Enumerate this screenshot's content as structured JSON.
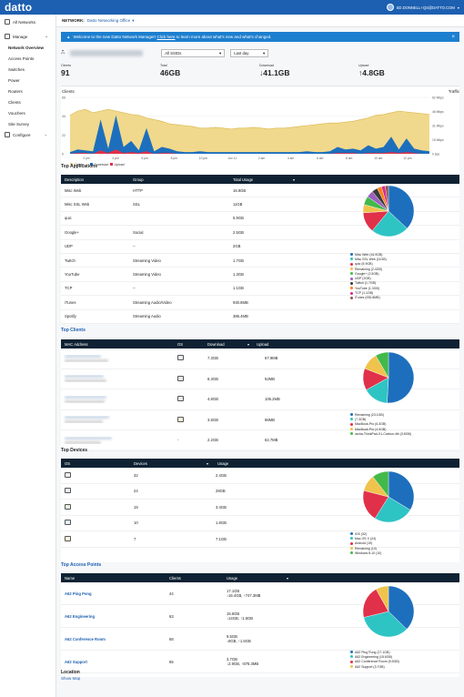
{
  "header": {
    "logo": "datto",
    "user": "SD.DONNELL+QS@DATTO.COM"
  },
  "sidebar": {
    "all_networks": "All Networks",
    "manage": "Manage",
    "items": [
      "Network Overview",
      "Access Points",
      "Switches",
      "Power",
      "Routers",
      "Clients",
      "Vouchers",
      "Site Survey"
    ],
    "configure": "Configure"
  },
  "netbar": {
    "label": "NETWORK:",
    "name": "Datto Networking Office"
  },
  "banner": {
    "pre": "Welcome to the new Datto Network Manager!",
    "link": "Click here",
    "post": "to learn more about what's new and what's changed."
  },
  "filters": {
    "ssid": "All SSIDs",
    "range": "Last day"
  },
  "stats": {
    "clients_label": "Clients",
    "clients": "91",
    "total_label": "Total",
    "total": "46GB",
    "download_label": "Download",
    "download": "↓41.1GB",
    "upload_label": "Upload",
    "upload": "↑4.8GB"
  },
  "chart_data": {
    "type": "area",
    "title": "Clients",
    "right_title": "Traffic",
    "x_ticks": [
      "2 pm",
      "4 pm",
      "6 pm",
      "8 pm",
      "10 pm",
      "Jun 11",
      "2 am",
      "4 am",
      "6 am",
      "8 am",
      "10 am",
      "12 pm"
    ],
    "y_left_ticks": [
      "66",
      "44",
      "22",
      "0"
    ],
    "y_right_ticks": [
      "62 Mbps",
      "46 Mbps",
      "31 Mbps",
      "15 Mbps",
      "0 bps"
    ],
    "legend": [
      "Clients",
      "Download",
      "Upload"
    ],
    "clients": [
      45,
      50,
      52,
      48,
      50,
      52,
      50,
      48,
      46,
      45,
      42,
      40,
      38,
      35,
      34,
      33,
      32,
      30,
      30,
      31,
      30,
      29,
      30,
      30,
      31,
      30,
      29,
      30,
      30,
      31,
      32,
      33,
      34,
      35,
      36,
      36,
      37,
      38,
      40,
      42,
      45,
      46,
      48,
      50,
      49,
      48,
      47,
      46
    ],
    "download": [
      2,
      5,
      4,
      3,
      40,
      6,
      45,
      8,
      15,
      4,
      30,
      3,
      8,
      6,
      3,
      2,
      2,
      3,
      2,
      2,
      2,
      2,
      2,
      2,
      2,
      2,
      2,
      2,
      2,
      2,
      2,
      3,
      2,
      2,
      3,
      8,
      5,
      6,
      4,
      10,
      6,
      8,
      20,
      5,
      18,
      6,
      4,
      3
    ],
    "upload": [
      0,
      1,
      1,
      0,
      4,
      1,
      5,
      1,
      2,
      1,
      3,
      0,
      1,
      1,
      0,
      0,
      0,
      0,
      0,
      0,
      0,
      0,
      0,
      0,
      0,
      0,
      0,
      0,
      0,
      0,
      0,
      0,
      0,
      0,
      0,
      1,
      1,
      1,
      0,
      1,
      1,
      1,
      2,
      1,
      2,
      1,
      0,
      0
    ],
    "colors": {
      "clients": "#f0d98c",
      "download": "#1d6fbd",
      "upload": "#e0304a"
    }
  },
  "top_apps": {
    "title": "Top Applications",
    "headers": [
      "Description",
      "Group",
      "Total Usage"
    ],
    "rows": [
      [
        "Misc Web",
        "HTTP",
        "16.9GB"
      ],
      [
        "Misc SSL Web",
        "SSL",
        "11GB"
      ],
      [
        "quic",
        "",
        "5.9GB"
      ],
      [
        "Google+",
        "Social",
        "2.5GB"
      ],
      [
        "UDP",
        "--",
        "2GB"
      ],
      [
        "Twitch",
        "Streaming Video",
        "1.7GB"
      ],
      [
        "YouTube",
        "Streaming Video",
        "1.3GB"
      ],
      [
        "TCP",
        "--",
        "1.1GB"
      ],
      [
        "iTunes",
        "Streaming Audio/Video",
        "930.8MB"
      ],
      [
        "Spotify",
        "Streaming Audio",
        "386.4MB"
      ]
    ],
    "legend": [
      "Misc Web (16.9GB)",
      "Misc SSL Web (11GB)",
      "quic (5.9GB)",
      "Remaining (2.4GB)",
      "Google+ (2.5GB)",
      "UDP (2GB)",
      "Twitch (1.7GB)",
      "YouTube (1.3GB)",
      "TCP (1.1GB)",
      "iTunes (930.8MB)"
    ],
    "values": [
      16.9,
      11,
      5.9,
      2.4,
      2.5,
      2,
      1.7,
      1.3,
      1.1,
      0.93
    ],
    "colors": [
      "#1d6fbd",
      "#2ec4c4",
      "#e0304a",
      "#f0c34c",
      "#42b94a",
      "#9b5fc0",
      "#3a3a3a",
      "#ff7f0e",
      "#d62790",
      "#8c564b"
    ]
  },
  "top_clients": {
    "title": "Top Clients",
    "headers": [
      "MAC Address",
      "OS",
      "Download",
      "Upload"
    ],
    "rows": [
      [
        "7.3GB",
        "67.9MB"
      ],
      [
        "6.3GB",
        "52MB"
      ],
      [
        "4.8GB",
        "106.2MB"
      ],
      [
        "3.8GB",
        "86MB"
      ],
      [
        "2.2GB",
        "62.7MB"
      ]
    ],
    "os_last": "-",
    "legend": [
      "Remaining (23.1GB)",
      "(7.3GB)",
      "MacBook-Pro (6.3GB)",
      "MacBook-Pro (4.9GB)",
      "racha-ThinkPad-X1-Carbon-4th (3.8GB)"
    ],
    "values": [
      23.1,
      7.3,
      6.3,
      4.9,
      3.8
    ],
    "colors": [
      "#1d6fbd",
      "#2ec4c4",
      "#e0304a",
      "#f0c34c",
      "#42b94a"
    ]
  },
  "top_devices": {
    "title": "Top Devices",
    "headers": [
      "OS",
      "Devices",
      "Usage"
    ],
    "rows": [
      [
        "32",
        "2.4GB"
      ],
      [
        "24",
        "28GB"
      ],
      [
        "19",
        "3.4GB"
      ],
      [
        "10",
        "1.8GB"
      ],
      [
        "7",
        "7.1GB"
      ]
    ],
    "legend": [
      "iOS (32)",
      "Mac OS X (24)",
      "Android (19)",
      "Remaining (10)",
      "Windows 8-10 (10)"
    ],
    "values": [
      32,
      24,
      19,
      10,
      10
    ],
    "colors": [
      "#1d6fbd",
      "#2ec4c4",
      "#e0304a",
      "#f0c34c",
      "#42b94a"
    ]
  },
  "top_aps": {
    "title": "Top Access Points",
    "headers": [
      "Name",
      "Clients",
      "Usage"
    ],
    "rows": [
      [
        "A62 Ping Pong",
        "44",
        "17.1GB",
        "↓16.4GB, ↑747.3MB"
      ],
      [
        "A62 Engineering",
        "63",
        "15.6GB",
        "↓14GB, ↑1.6GB"
      ],
      [
        "A62 Conference Room",
        "68",
        "9.5GB",
        "↓8GB, ↑1.5GB"
      ],
      [
        "A62 Support",
        "65",
        "3.7GB",
        "↓2.9GB, ↑878.3MB"
      ]
    ],
    "legend": [
      "A62 Ping Pong (17.1GB)",
      "A62 Engineering (15.6GB)",
      "A62 Conference Room (9.5GB)",
      "A62 Support (3.7GB)"
    ],
    "values": [
      17.1,
      15.6,
      9.5,
      3.7
    ],
    "colors": [
      "#1d6fbd",
      "#2ec4c4",
      "#e0304a",
      "#f0c34c"
    ]
  },
  "location": {
    "title": "Location",
    "link": "Show Map"
  }
}
